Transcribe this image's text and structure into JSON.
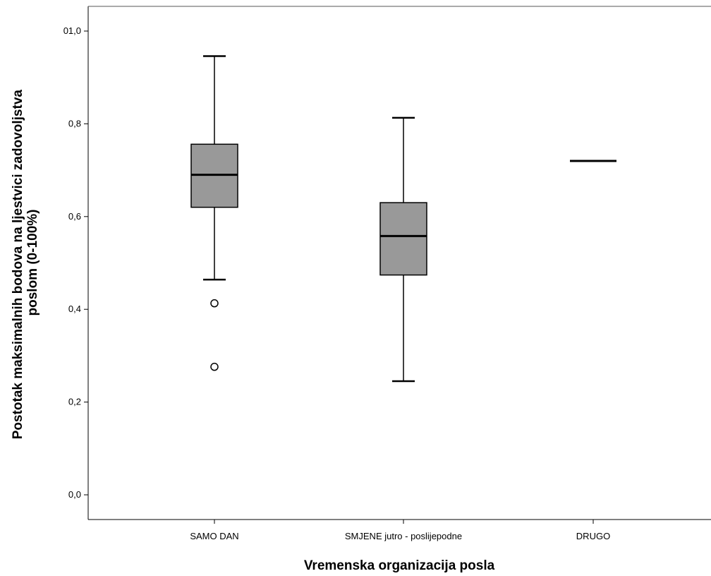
{
  "chart_data": {
    "type": "boxplot",
    "title": "",
    "xlabel": "Vremenska organizacija posla",
    "ylabel_lines": [
      "Postotak maksimalnih bodova na ljestvici zadovoljstva",
      "poslom (0-100%)"
    ],
    "ylim": [
      0.0,
      1.0
    ],
    "y_ticks": [
      0.0,
      0.2,
      0.4,
      0.6,
      0.8,
      1.0
    ],
    "y_tick_labels": [
      "0,0",
      "0,2",
      "0,4",
      "0,6",
      "0,8",
      "01,0"
    ],
    "grid": false,
    "box_color": "#999999",
    "categories": [
      "SAMO DAN",
      "SMJENE jutro - poslijepodne",
      "DRUGO"
    ],
    "boxes": [
      {
        "category": "SAMO DAN",
        "whisker_low": 0.464,
        "q1": 0.62,
        "median": 0.69,
        "q3": 0.756,
        "whisker_high": 0.946,
        "outliers": [
          0.413,
          0.276
        ]
      },
      {
        "category": "SMJENE jutro - poslijepodne",
        "whisker_low": 0.245,
        "q1": 0.474,
        "median": 0.558,
        "q3": 0.63,
        "whisker_high": 0.813,
        "outliers": []
      },
      {
        "category": "DRUGO",
        "whisker_low": 0.72,
        "q1": 0.72,
        "median": 0.72,
        "q3": 0.72,
        "whisker_high": 0.72,
        "outliers": []
      }
    ]
  }
}
